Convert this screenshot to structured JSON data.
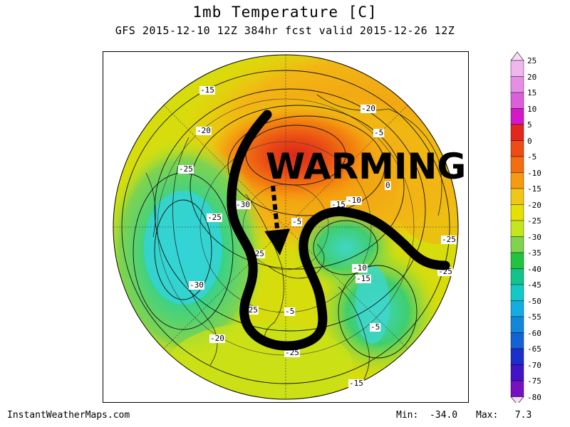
{
  "header": {
    "title": "1mb Temperature [C]",
    "subtitle": "GFS 2015-12-10 12Z 384hr fcst valid 2015-12-26 12Z"
  },
  "annotation": {
    "text": "WARMING",
    "arrow_color": "#000000",
    "arrow_style": "dashed with arrowhead"
  },
  "map": {
    "projection": "north polar stereographic",
    "contour_labels": [
      "-15",
      "-20",
      "-25",
      "-25",
      "-30",
      "-25",
      "-20",
      "-25",
      "-20",
      "-5",
      "0",
      "-10",
      "-15",
      "-5",
      "-10",
      "-15",
      "-5",
      "-15",
      "-25",
      "-25",
      "-30",
      "-25",
      "-5"
    ]
  },
  "colorbar": {
    "labels": [
      "25",
      "20",
      "15",
      "10",
      "5",
      "0",
      "-5",
      "-10",
      "-15",
      "-20",
      "-25",
      "-30",
      "-35",
      "-40",
      "-45",
      "-50",
      "-55",
      "-60",
      "-65",
      "-70",
      "-75",
      "-80"
    ],
    "colors": [
      "#f7dcf5",
      "#efb7ee",
      "#e68ee5",
      "#da5fd9",
      "#d417c9",
      "#e3271d",
      "#ef4b14",
      "#f36e0f",
      "#f59b10",
      "#f2c615",
      "#e4e000",
      "#c4e61d",
      "#7fd34f",
      "#22c33f",
      "#13c48a",
      "#13c9c7",
      "#12aee2",
      "#1288dc",
      "#1362d6",
      "#1c2ecc",
      "#4213c7",
      "#7511c2",
      "#9b0fbc",
      "#ba2cd3",
      "#d25ce0",
      "#e486ea",
      "#f0b4f2",
      "#f7dcf6"
    ]
  },
  "footer": {
    "site": "InstantWeatherMaps.com",
    "min": "Min:  -34.0",
    "max": "Max:   7.3"
  }
}
